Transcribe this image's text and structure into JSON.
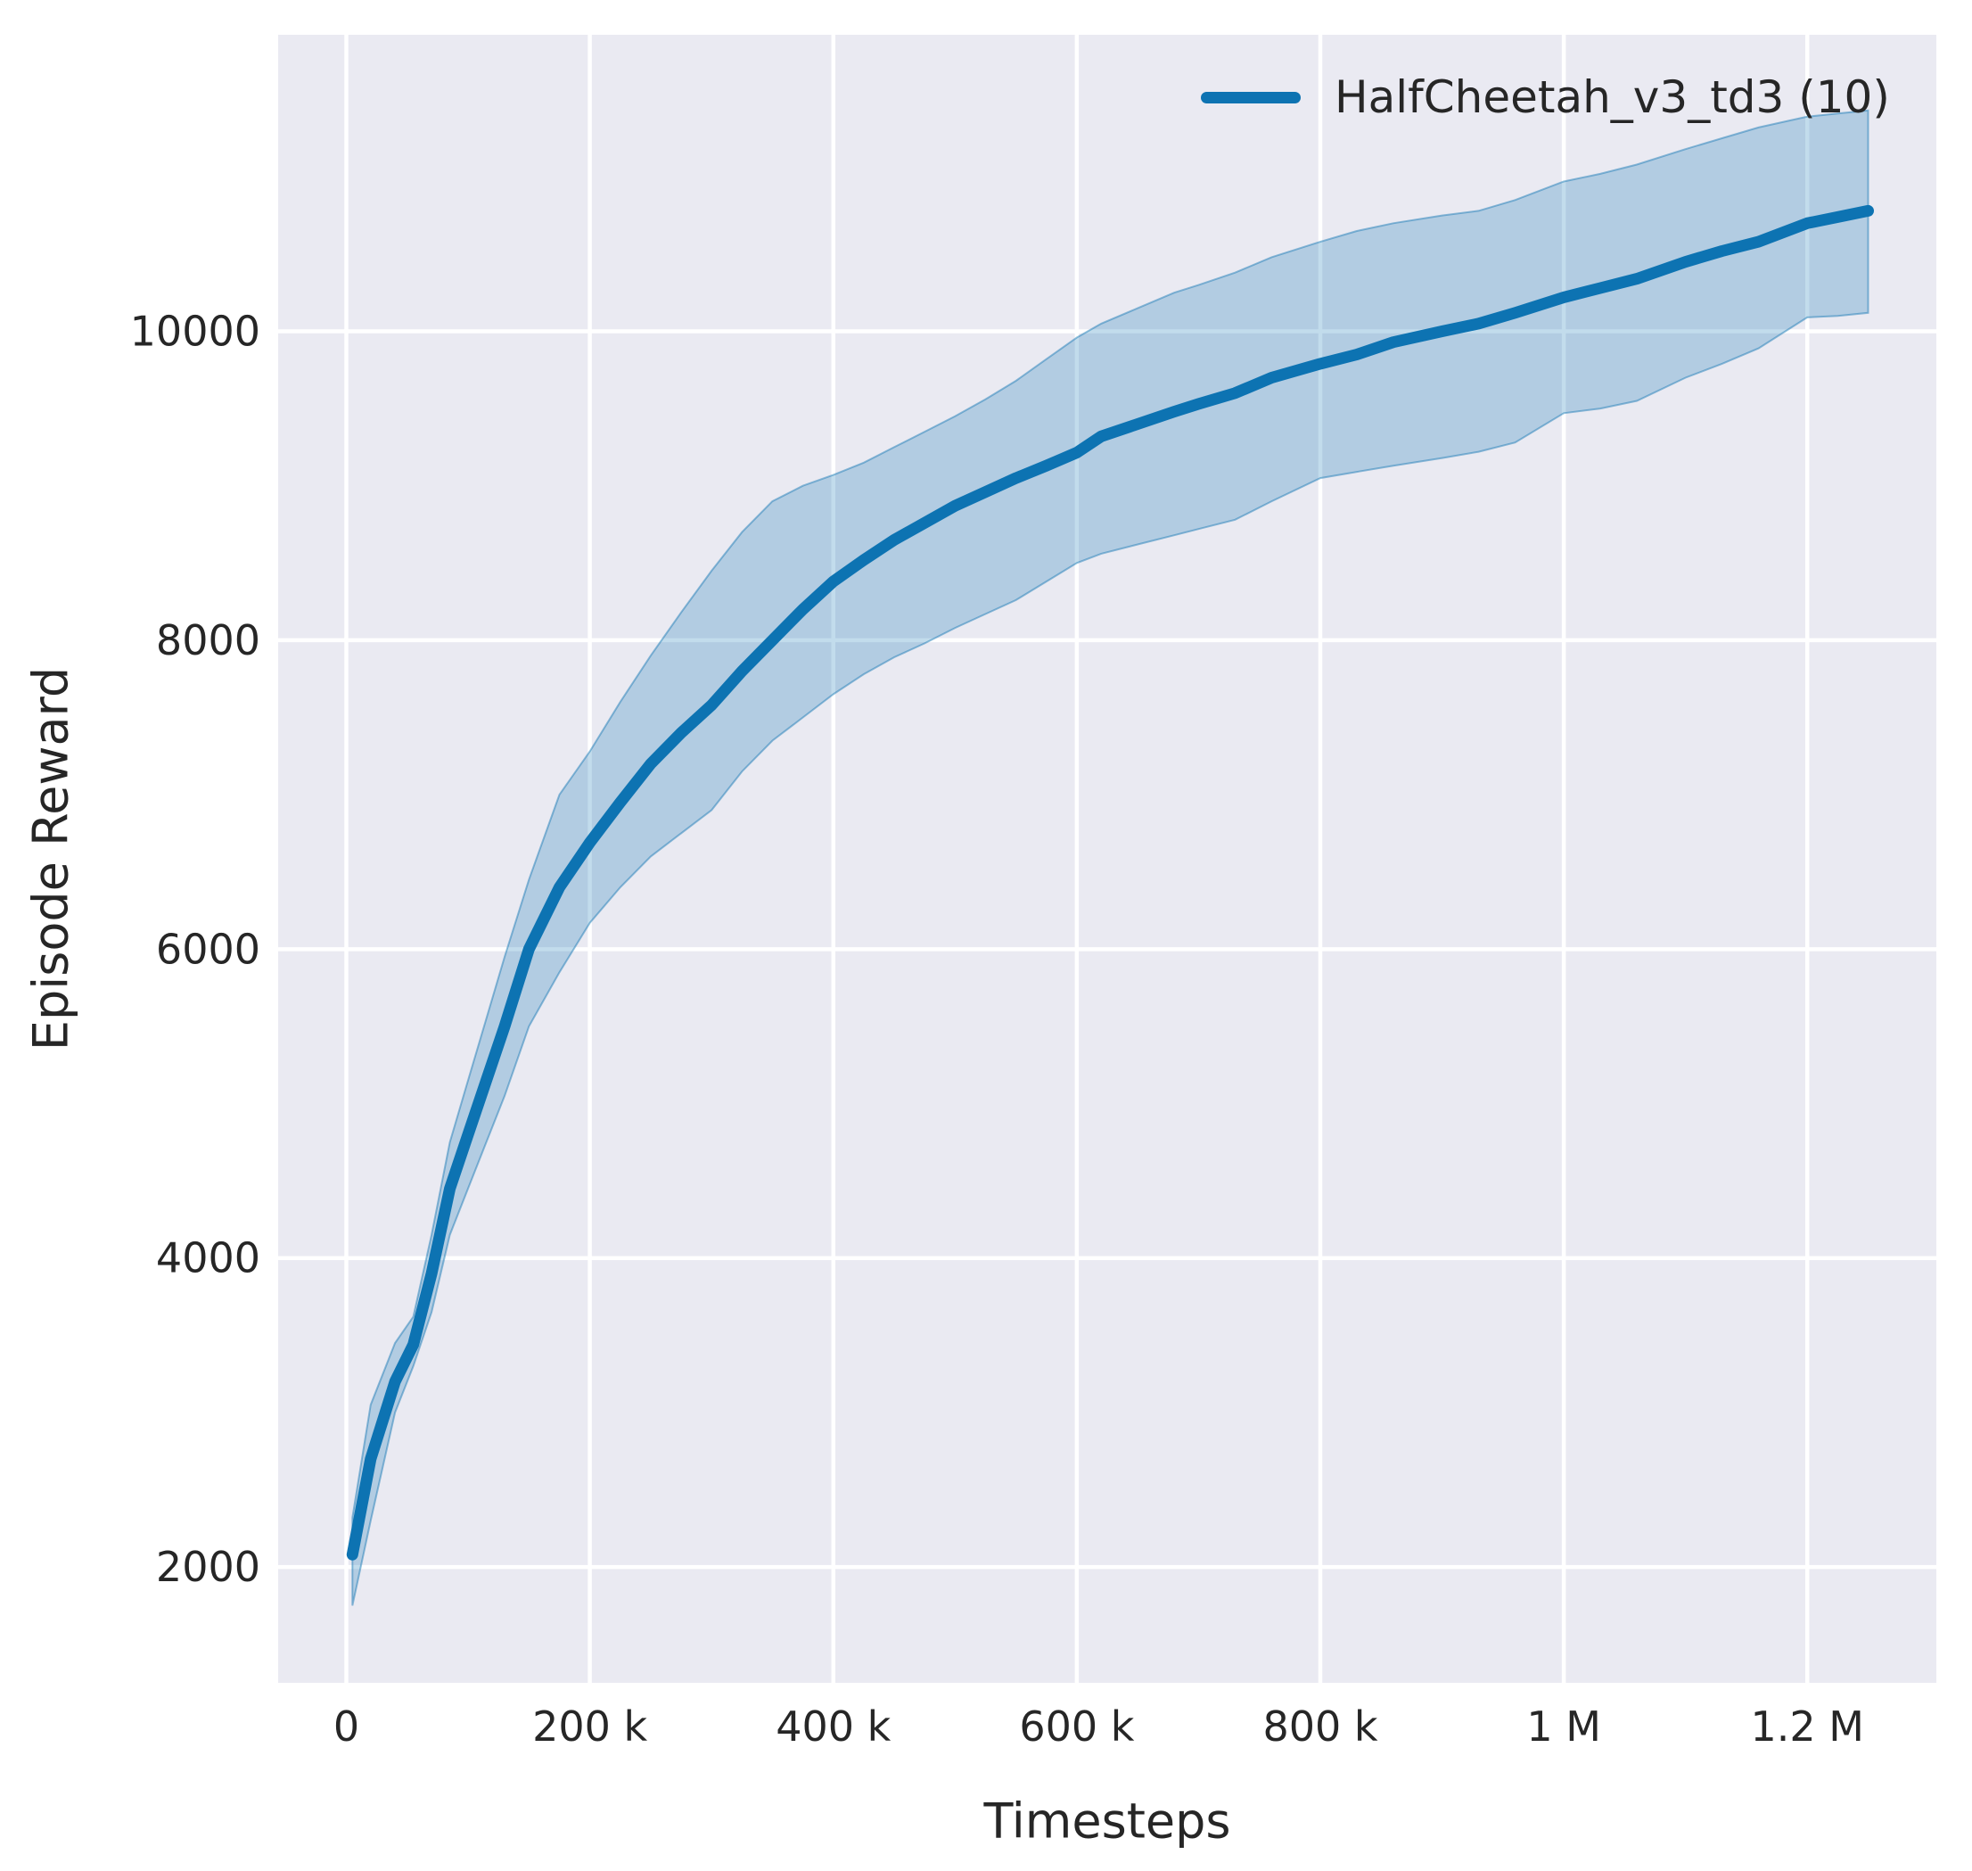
{
  "figure": {
    "background": "#ffffff",
    "axes_background": "#eaeaf2",
    "grid_color": "#ffffff",
    "text_color": "#262626"
  },
  "chart_data": {
    "type": "line",
    "title": "",
    "xlabel": "Timesteps",
    "ylabel": "Episode Reward",
    "grid": true,
    "legend_position": "upper right",
    "legend": [
      {
        "label": "HalfCheetah_v3_td3 (10)",
        "color": "#0d73b2"
      }
    ],
    "xlim": [
      -56000,
      1306000
    ],
    "ylim": [
      1250,
      11920
    ],
    "x_ticks": [
      {
        "value": 0,
        "label": "0"
      },
      {
        "value": 200000,
        "label": "200 k"
      },
      {
        "value": 400000,
        "label": "400 k"
      },
      {
        "value": 600000,
        "label": "600 k"
      },
      {
        "value": 800000,
        "label": "800 k"
      },
      {
        "value": 1000000,
        "label": "1 M"
      },
      {
        "value": 1200000,
        "label": "1.2 M"
      }
    ],
    "y_ticks": [
      {
        "value": 2000,
        "label": "2000"
      },
      {
        "value": 4000,
        "label": "4000"
      },
      {
        "value": 6000,
        "label": "6000"
      },
      {
        "value": 8000,
        "label": "8000"
      },
      {
        "value": 10000,
        "label": "10000"
      }
    ],
    "series": [
      {
        "name": "HalfCheetah_v3_td3 (10)",
        "color": "#0d73b2",
        "band_fill_alpha": 0.25,
        "band_edge_alpha": 0.45,
        "line_width": 13,
        "x": [
          5000,
          20000,
          40000,
          55000,
          70000,
          85000,
          100000,
          115000,
          130000,
          150000,
          175000,
          200000,
          225000,
          250000,
          275000,
          300000,
          325000,
          350000,
          375000,
          400000,
          425000,
          450000,
          475000,
          500000,
          525000,
          550000,
          575000,
          600000,
          620000,
          650000,
          680000,
          700000,
          730000,
          760000,
          800000,
          830000,
          860000,
          900000,
          930000,
          960000,
          1000000,
          1030000,
          1060000,
          1100000,
          1130000,
          1160000,
          1200000,
          1225000,
          1250000
        ],
        "mean": [
          2080,
          2700,
          3200,
          3440,
          3900,
          4450,
          4800,
          5150,
          5500,
          6000,
          6400,
          6690,
          6950,
          7200,
          7400,
          7580,
          7800,
          8000,
          8200,
          8380,
          8520,
          8650,
          8760,
          8870,
          8960,
          9050,
          9130,
          9215,
          9320,
          9400,
          9480,
          9530,
          9600,
          9700,
          9790,
          9850,
          9930,
          10000,
          10050,
          10120,
          10220,
          10280,
          10340,
          10450,
          10520,
          10580,
          10700,
          10740,
          10780
        ],
        "lower": [
          1750,
          2300,
          3000,
          3300,
          3650,
          4150,
          4450,
          4750,
          5050,
          5500,
          5850,
          6170,
          6400,
          6600,
          6750,
          6900,
          7150,
          7350,
          7500,
          7650,
          7780,
          7890,
          7980,
          8080,
          8170,
          8260,
          8380,
          8500,
          8560,
          8620,
          8680,
          8720,
          8780,
          8900,
          9050,
          9090,
          9130,
          9180,
          9220,
          9280,
          9470,
          9500,
          9550,
          9700,
          9790,
          9890,
          10090,
          10100,
          10120
        ],
        "upper": [
          2320,
          3050,
          3450,
          3620,
          4150,
          4750,
          5150,
          5550,
          5950,
          6450,
          7000,
          7280,
          7600,
          7900,
          8180,
          8450,
          8700,
          8900,
          9000,
          9070,
          9150,
          9250,
          9350,
          9450,
          9560,
          9680,
          9820,
          9960,
          10050,
          10150,
          10250,
          10300,
          10380,
          10480,
          10580,
          10650,
          10700,
          10750,
          10780,
          10850,
          10970,
          11020,
          11080,
          11180,
          11250,
          11320,
          11390,
          11410,
          11430
        ]
      }
    ]
  }
}
